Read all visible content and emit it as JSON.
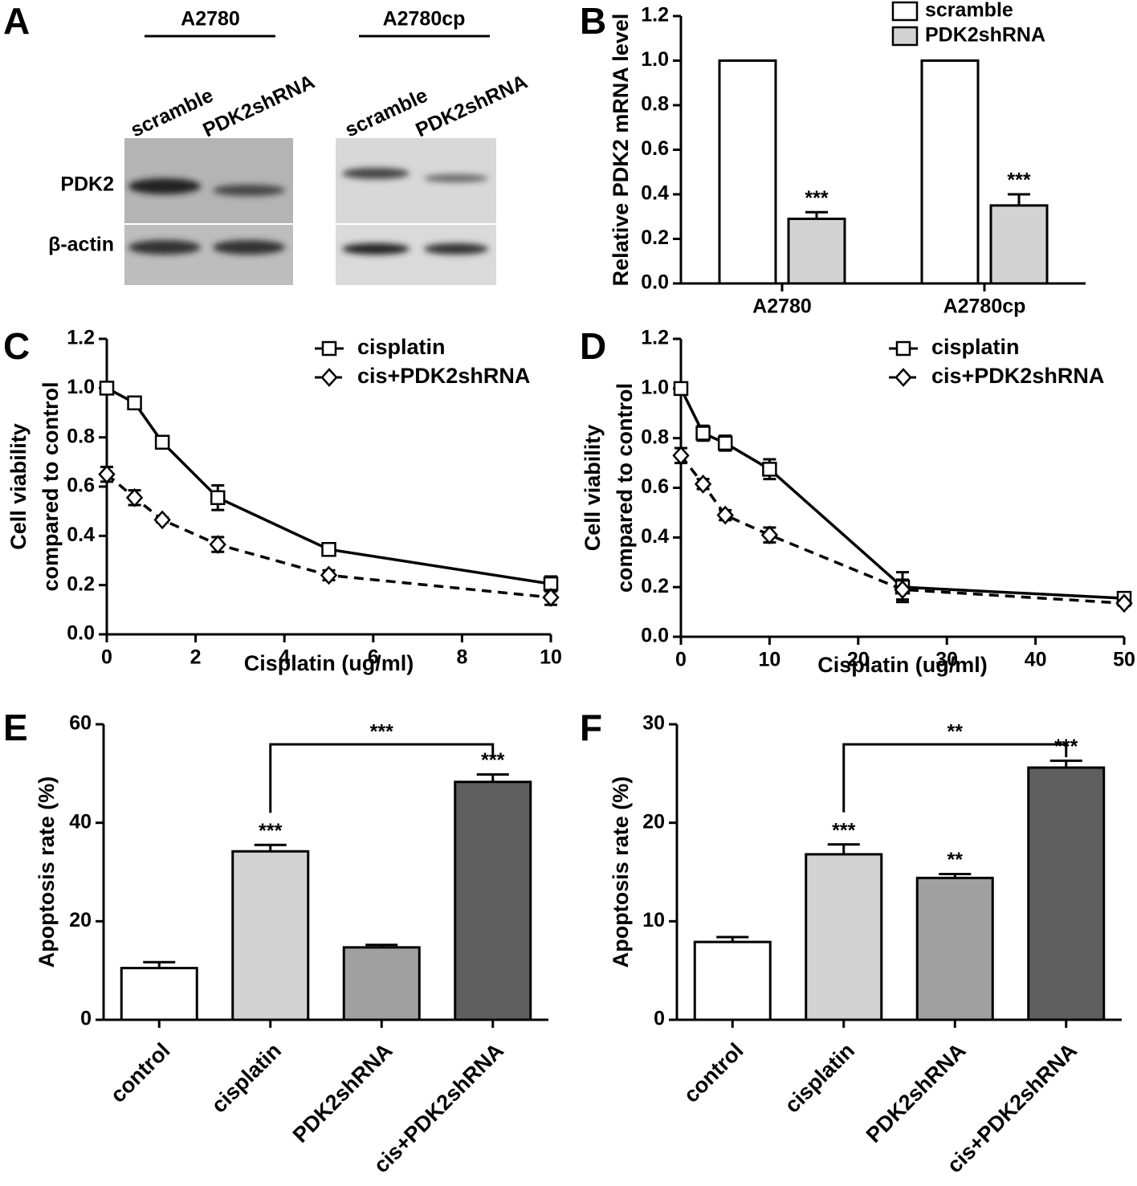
{
  "blot": {
    "panel": "A",
    "groups": [
      {
        "name": "A2780",
        "lanes": [
          "scramble",
          "PDK2shRNA"
        ]
      },
      {
        "name": "A2780cp",
        "lanes": [
          "scramble",
          "PDK2shRNA"
        ]
      }
    ],
    "rows": [
      "PDK2",
      "β-actin"
    ]
  },
  "chart_data": [
    {
      "type": "bar",
      "panel": "B",
      "ylabel": "Relative PDK2 mRNA level",
      "categories": [
        "A2780",
        "A2780cp"
      ],
      "series": [
        {
          "name": "scramble",
          "color": "#ffffff",
          "values": [
            1.0,
            1.0
          ],
          "errors": [
            0,
            0
          ]
        },
        {
          "name": "PDK2shRNA",
          "color": "#d3d3d3",
          "values": [
            0.29,
            0.35
          ],
          "errors": [
            0.03,
            0.05
          ],
          "significance": [
            "***",
            "***"
          ]
        }
      ],
      "ylim": [
        0,
        1.2
      ],
      "yticks": [
        {
          "value": 0,
          "label": "0.0"
        },
        0.2,
        0.4,
        0.6,
        0.8,
        {
          "value": 1,
          "label": "1.0"
        },
        1.2
      ],
      "legend": "top-right"
    },
    {
      "type": "line",
      "panel": "C",
      "ylabel": [
        "Cell viability",
        "compared to control"
      ],
      "xlabel": "Cisplatin (ug/ml)",
      "x": [
        0,
        0.625,
        1.25,
        2.5,
        5,
        10
      ],
      "series": [
        {
          "name": "cisplatin",
          "color": "#000000",
          "marker": "square",
          "dash": false,
          "values": [
            1.0,
            0.94,
            0.78,
            0.555,
            0.345,
            0.205
          ],
          "errors": [
            0.01,
            0.01,
            0.02,
            0.05,
            0.02,
            0.03
          ]
        },
        {
          "name": "cis+PDK2shRNA",
          "color": "#000000",
          "marker": "diamond",
          "dash": true,
          "values": [
            0.65,
            0.555,
            0.465,
            0.365,
            0.24,
            0.15
          ],
          "errors": [
            0.03,
            0.03,
            0.01,
            0.03,
            0.02,
            0.03
          ]
        }
      ],
      "xlim": [
        0,
        10
      ],
      "xticks": [
        0,
        2,
        4,
        6,
        8,
        10
      ],
      "ylim": [
        0,
        1.2
      ],
      "yticks": [
        {
          "value": 0,
          "label": "0.0"
        },
        0.2,
        0.4,
        0.6,
        0.8,
        {
          "value": 1,
          "label": "1.0"
        },
        1.2
      ],
      "legend": "top-right"
    },
    {
      "type": "line",
      "panel": "D",
      "ylabel": [
        "Cell viability",
        "compared to control"
      ],
      "xlabel": "Cisplatin (ug/ml)",
      "x": [
        0,
        2.5,
        5,
        10,
        25,
        50
      ],
      "series": [
        {
          "name": "cisplatin",
          "color": "#000000",
          "marker": "square",
          "dash": false,
          "values": [
            1.0,
            0.82,
            0.78,
            0.675,
            0.2,
            0.155
          ],
          "errors": [
            0.01,
            0.03,
            0.03,
            0.04,
            0.06,
            0.01
          ]
        },
        {
          "name": "cis+PDK2shRNA",
          "color": "#000000",
          "marker": "diamond",
          "dash": true,
          "values": [
            0.73,
            0.615,
            0.49,
            0.41,
            0.19,
            0.135
          ],
          "errors": [
            0.03,
            0.02,
            0.02,
            0.03,
            0.04,
            0.01
          ]
        }
      ],
      "xlim": [
        0,
        50
      ],
      "xticks": [
        0,
        10,
        20,
        30,
        40,
        50
      ],
      "ylim": [
        0,
        1.2
      ],
      "yticks": [
        {
          "value": 0,
          "label": "0.0"
        },
        0.2,
        0.4,
        0.6,
        0.8,
        {
          "value": 1,
          "label": "1.0"
        },
        1.2
      ],
      "legend": "top-right"
    },
    {
      "type": "bar",
      "panel": "E",
      "ylabel": "Apoptosis rate (%)",
      "categories": [
        "control",
        "cisplatin",
        "PDK2shRNA",
        "cis+PDK2shRNA"
      ],
      "values": [
        10.5,
        34.2,
        14.7,
        48.3
      ],
      "errors": [
        1.2,
        1.3,
        0.5,
        1.5
      ],
      "colors": [
        "#ffffff",
        "#d3d3d3",
        "#a0a0a0",
        "#5f5f5f"
      ],
      "significance": [
        null,
        "***",
        null,
        "***"
      ],
      "comparison": {
        "between": [
          1,
          3
        ],
        "label": "***"
      },
      "ylim": [
        0,
        60
      ],
      "yticks": [
        0,
        20,
        40,
        60
      ]
    },
    {
      "type": "bar",
      "panel": "F",
      "ylabel": "Apoptosis rate (%)",
      "categories": [
        "control",
        "cisplatin",
        "PDK2shRNA",
        "cis+PDK2shRNA"
      ],
      "values": [
        7.9,
        16.8,
        14.4,
        25.6
      ],
      "errors": [
        0.5,
        1.0,
        0.4,
        0.7
      ],
      "colors": [
        "#ffffff",
        "#d3d3d3",
        "#a0a0a0",
        "#5f5f5f"
      ],
      "significance": [
        null,
        "***",
        "**",
        "***"
      ],
      "comparison": {
        "between": [
          1,
          3
        ],
        "label": "**"
      },
      "ylim": [
        0,
        30
      ],
      "yticks": [
        0,
        10,
        20,
        30
      ]
    }
  ]
}
